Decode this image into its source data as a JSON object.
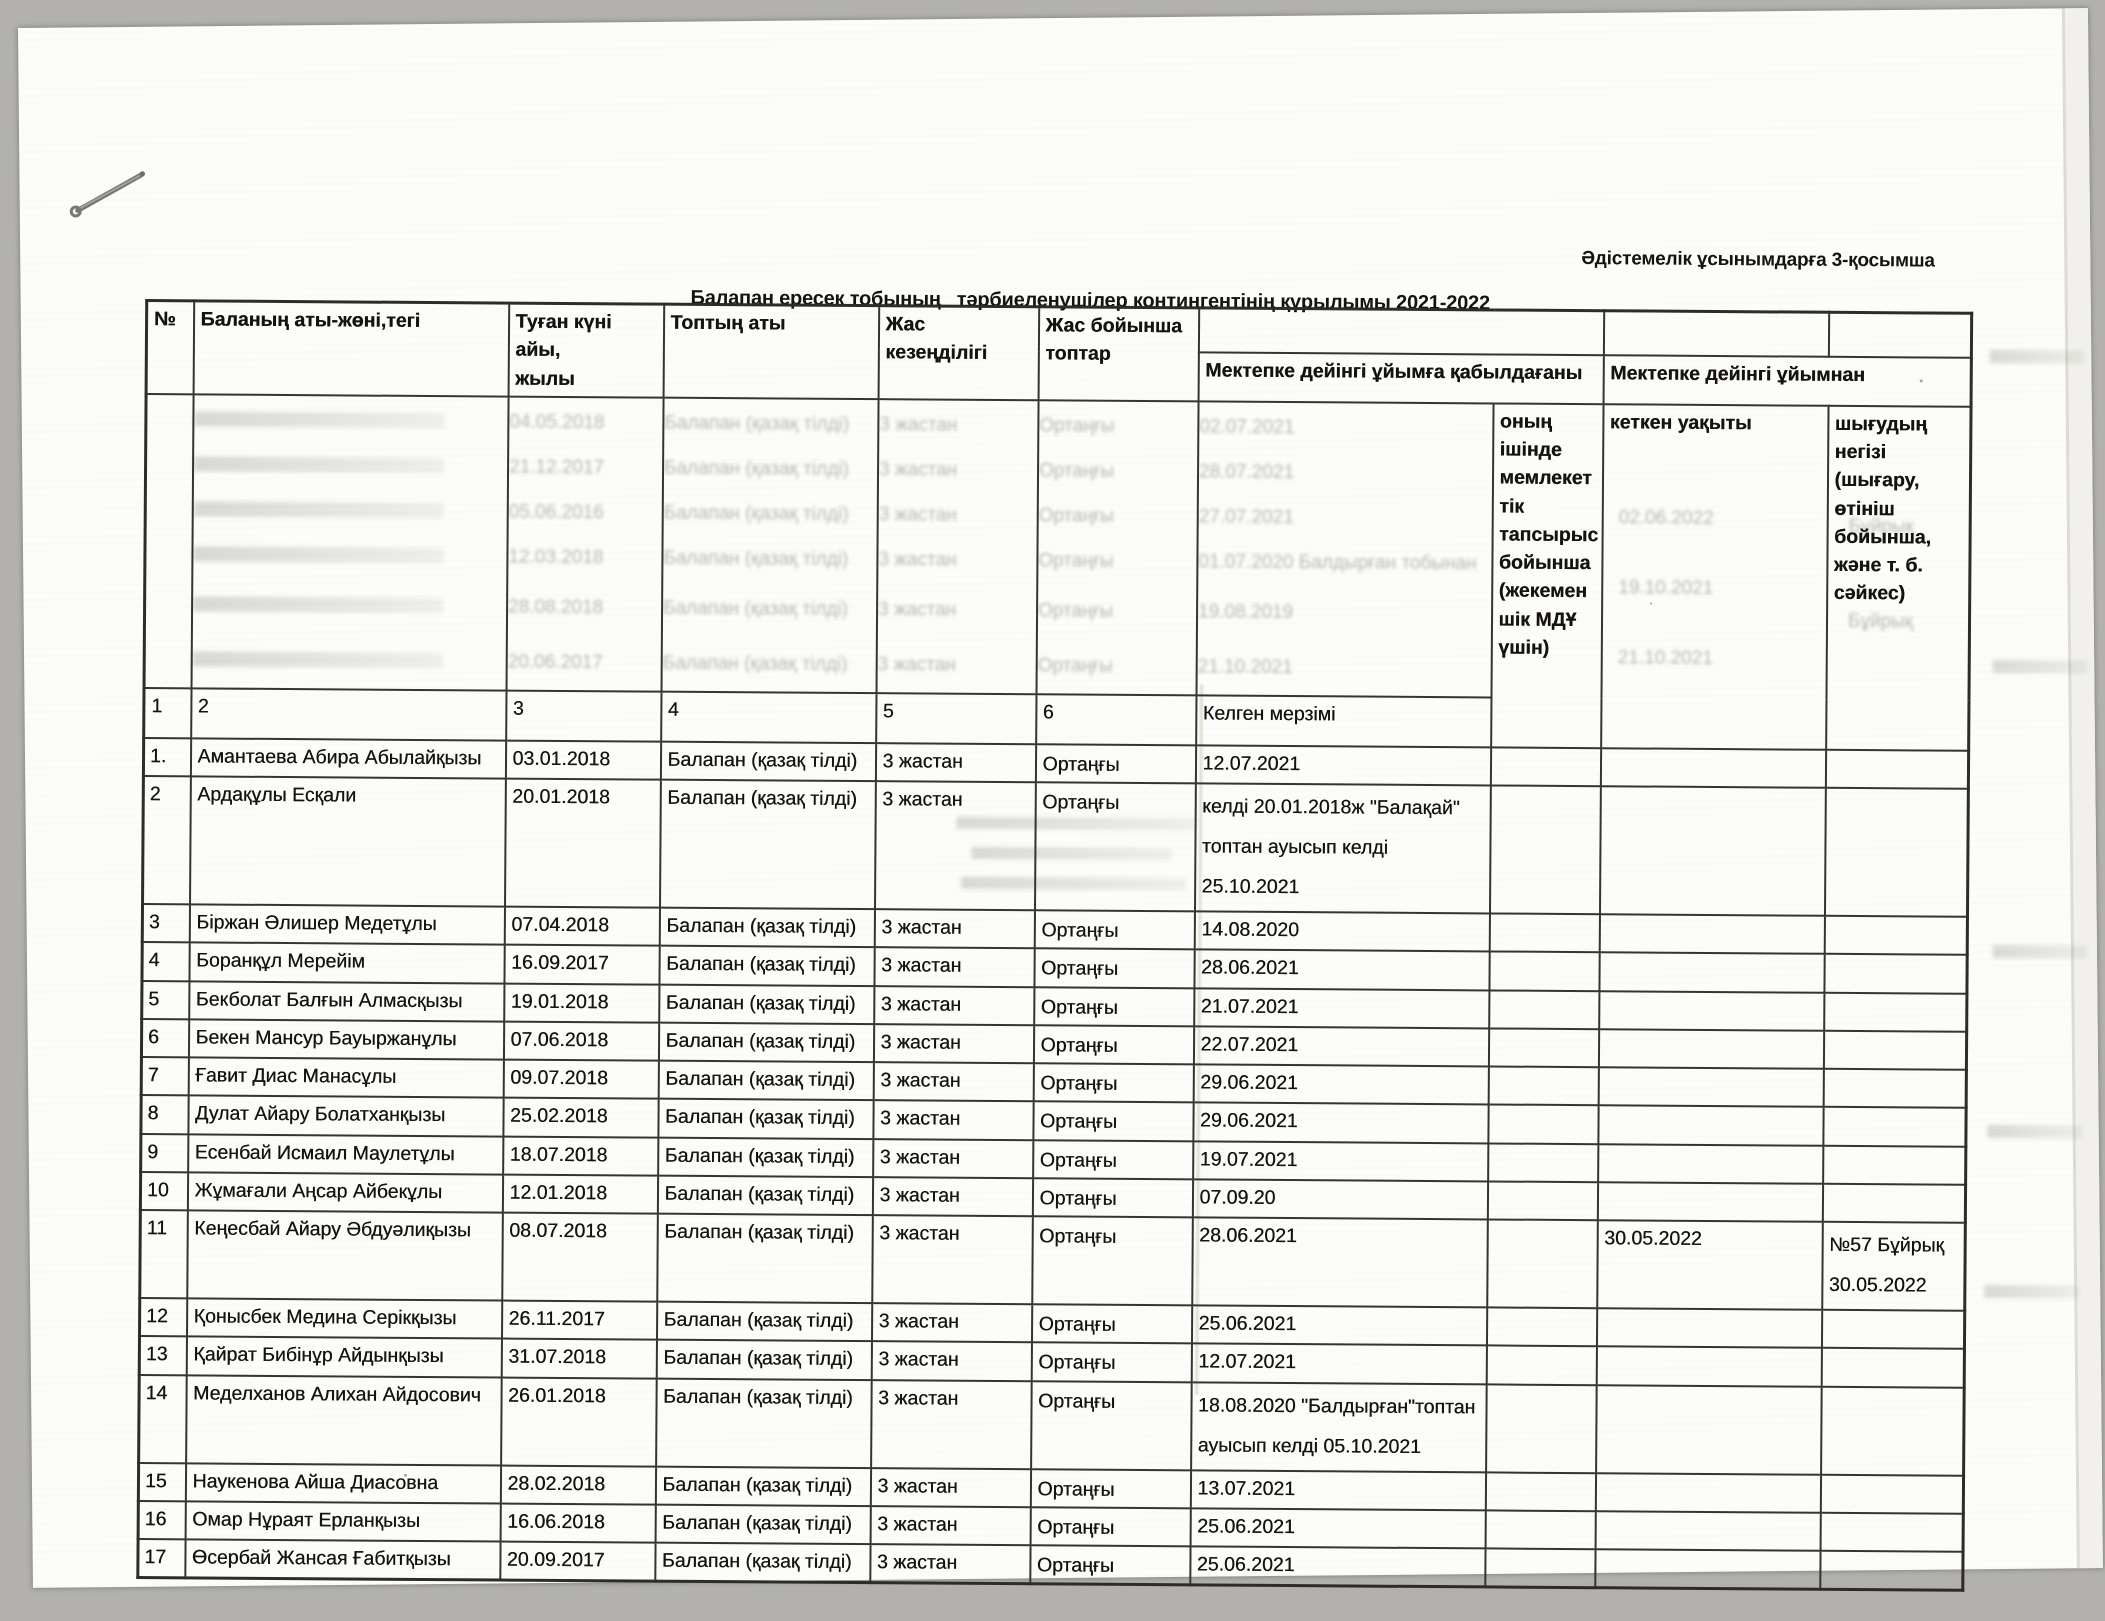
{
  "scan": {
    "appendix_note": "Әдістемелік ұсынымдарға 3-қосымша",
    "title": "Балапан ересек тобының   тәрбиеленушілер контингентінің құрылымы 2021-2022"
  },
  "table": {
    "head": {
      "no": "№",
      "name": "Баланың аты-жөні,тегі",
      "birth": "Туған күні айы,\nжылы",
      "group": "Топтың аты",
      "age_period": "Жас кезеңділігі",
      "age_group": "Жас бойынша\nтоптар",
      "admitted_org": "Мектепке дейінгі ұйымға қабылдағаны",
      "left_org": "Мектепке дейінгі ұйымнан",
      "arrival_label": "Келген мерзімі",
      "state_order": "оның\nішінде\nмемлекет\nтік\nтапсырыс\nбойынша\n(жекемен\nшік МДҰ\nүшін)",
      "leave_label": "кеткен уақыты",
      "reason_label": "шығудың\nнегізі\n(шығару,\nөтініш\nбойынша,\nжәне т. б.\nсәйкес)",
      "col_numbers": [
        "1",
        "2",
        "3",
        "4",
        "5",
        "6"
      ]
    },
    "rows": [
      {
        "no": "1.",
        "name": "Амантаева Абира Абылайқызы",
        "birth": "03.01.2018",
        "group": "Балапан (қазақ тілді)",
        "age_period": "3 жастан",
        "age_group": "Ортаңғы",
        "arrival": "12.07.2021",
        "state": "",
        "leave": "",
        "reason": ""
      },
      {
        "no": "2",
        "name": "Ардақұлы Есқали",
        "birth": "20.01.2018",
        "group": "Балапан (қазақ тілді)",
        "age_period": "3 жастан",
        "age_group": "Ортаңғы",
        "arrival": "келді 20.01.2018ж \"Балақай\"\nтоптан ауысып келді 25.10.2021",
        "state": "",
        "leave": "",
        "reason": ""
      },
      {
        "no": "3",
        "name": "Біржан Әлишер Медетұлы",
        "birth": "07.04.2018",
        "group": "Балапан (қазақ тілді)",
        "age_period": "3 жастан",
        "age_group": "Ортаңғы",
        "arrival": "14.08.2020",
        "state": "",
        "leave": "",
        "reason": ""
      },
      {
        "no": "4",
        "name": "Боранқұл Мерейім",
        "birth": "16.09.2017",
        "group": "Балапан (қазақ тілді)",
        "age_period": "3 жастан",
        "age_group": "Ортаңғы",
        "arrival": "28.06.2021",
        "state": "",
        "leave": "",
        "reason": ""
      },
      {
        "no": "5",
        "name": "Бекболат Балғын Алмасқызы",
        "birth": "19.01.2018",
        "group": "Балапан (қазақ тілді)",
        "age_period": "3 жастан",
        "age_group": "Ортаңғы",
        "arrival": "21.07.2021",
        "state": "",
        "leave": "",
        "reason": ""
      },
      {
        "no": "6",
        "name": "Бекен Мансур Бауыржанұлы",
        "birth": "07.06.2018",
        "group": "Балапан (қазақ тілді)",
        "age_period": "3 жастан",
        "age_group": "Ортаңғы",
        "arrival": "22.07.2021",
        "state": "",
        "leave": "",
        "reason": ""
      },
      {
        "no": "7",
        "name": "Ғавит Диас Манасұлы",
        "birth": "09.07.2018",
        "group": "Балапан (қазақ тілді)",
        "age_period": "3 жастан",
        "age_group": "Ортаңғы",
        "arrival": "29.06.2021",
        "state": "",
        "leave": "",
        "reason": ""
      },
      {
        "no": "8",
        "name": "Дулат Айару Болатханқызы",
        "birth": "25.02.2018",
        "group": "Балапан (қазақ тілді)",
        "age_period": "3 жастан",
        "age_group": "Ортаңғы",
        "arrival": "29.06.2021",
        "state": "",
        "leave": "",
        "reason": ""
      },
      {
        "no": "9",
        "name": "Есенбай Исмаил Маулетұлы",
        "birth": "18.07.2018",
        "group": "Балапан (қазақ тілді)",
        "age_period": "3 жастан",
        "age_group": "Ортаңғы",
        "arrival": "19.07.2021",
        "state": "",
        "leave": "",
        "reason": ""
      },
      {
        "no": "10",
        "name": "Жұмағали Аңсар Айбекұлы",
        "birth": "12.01.2018",
        "group": "Балапан (қазақ тілді)",
        "age_period": "3 жастан",
        "age_group": "Ортаңғы",
        "arrival": " 07.09.20",
        "state": "",
        "leave": "",
        "reason": ""
      },
      {
        "no": "11",
        "name": "Кеңесбай Айару Әбдуәлиқызы",
        "birth": "08.07.2018",
        "group": "Балапан (қазақ тілді)",
        "age_period": "3 жастан",
        "age_group": "Ортаңғы",
        "arrival": "28.06.2021",
        "state": "",
        "leave": "30.05.2022",
        "reason": "№57 Бұйрық\n30.05.2022"
      },
      {
        "no": "12",
        "name": "Қонысбек Медина Серікқызы",
        "birth": "26.11.2017",
        "group": "Балапан (қазақ тілді)",
        "age_period": "3 жастан",
        "age_group": "Ортаңғы",
        "arrival": "25.06.2021",
        "state": "",
        "leave": "",
        "reason": ""
      },
      {
        "no": "13",
        "name": "Қайрат Бибінұр Айдынқызы",
        "birth": "31.07.2018",
        "group": "Балапан (қазақ тілді)",
        "age_period": "3 жастан",
        "age_group": "Ортаңғы",
        "arrival": "12.07.2021",
        "state": "",
        "leave": "",
        "reason": ""
      },
      {
        "no": "14",
        "name": "Меделханов Алихан Айдосович",
        "birth": "26.01.2018",
        "group": "Балапан (қазақ тілді)",
        "age_period": "3 жастан",
        "age_group": "Ортаңғы",
        "arrival": "18.08.2020 \"Балдырған\"топтан\nауысып келді 05.10.2021",
        "state": "",
        "leave": "",
        "reason": ""
      },
      {
        "no": "15",
        "name": "Наукенова Айша Диасовна",
        "birth": "28.02.2018",
        "group": "Балапан (қазақ тілді)",
        "age_period": "3 жастан",
        "age_group": "Ортаңғы",
        "arrival": "13.07.2021",
        "state": "",
        "leave": "",
        "reason": ""
      },
      {
        "no": "16",
        "name": "Омар Нұраят Ерланқызы",
        "birth": "16.06.2018",
        "group": "Балапан (қазақ тілді)",
        "age_period": "3 жастан",
        "age_group": "Ортаңғы",
        "arrival": "25.06.2021",
        "state": "",
        "leave": "",
        "reason": ""
      },
      {
        "no": "17",
        "name": "Өсербай Жансая Ғабитқызы",
        "birth": "20.09.2017",
        "group": "Балапан (қазақ тілді)",
        "age_period": "3 жастан",
        "age_group": "Ортаңғы",
        "arrival": "25.06.2021",
        "state": "",
        "leave": "",
        "reason": ""
      }
    ]
  },
  "bleed": {
    "note": "faint show-through of the sheet behind (barely legible)",
    "group": "Балапан (қазақ тілді)",
    "age_period": "3 жастан",
    "age_group": "Ортаңғы",
    "rows": [
      {
        "birth": "04.05.2018",
        "arrival": "02.07.2021"
      },
      {
        "birth": "21.12.2017",
        "arrival": "28.07.2021"
      },
      {
        "birth": "05.06.2016",
        "arrival": "27.07.2021"
      },
      {
        "birth": "12.03.2018",
        "arrival": "01.07.2020 Балдырған тобынан"
      },
      {
        "birth": "28.08.2018",
        "arrival": "19.08.2019"
      },
      {
        "birth": "20.06.2017",
        "arrival": "21.10.2021"
      }
    ],
    "leave_dates": [
      "02.06.2022",
      "19.10.2021",
      "21.10.2021"
    ],
    "reason_fragments": [
      "Бұйрық",
      "Бұйрық"
    ]
  }
}
